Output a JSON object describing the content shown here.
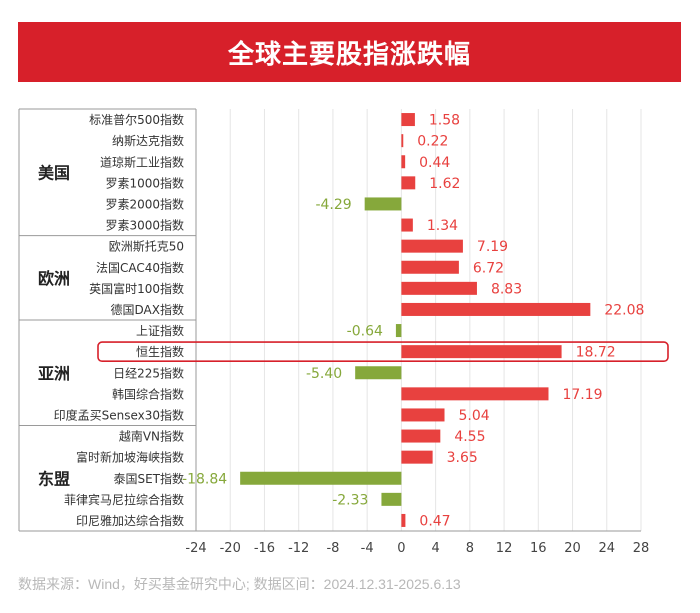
{
  "header": {
    "title": "全球主要股指涨跌幅"
  },
  "footer": {
    "source": "数据来源：Wind，好买基金研究中心; 数据区间：2024.12.31-2025.6.13"
  },
  "colors": {
    "positive": "#e8413f",
    "negative": "#86a83b",
    "banner": "#d7202a",
    "highlight": "#d7202a"
  },
  "chart_data": {
    "type": "bar",
    "orientation": "horizontal",
    "title": "全球主要股指涨跌幅",
    "xlim": [
      -24,
      28
    ],
    "xticks": [
      -24,
      -20,
      -16,
      -12,
      -8,
      -4,
      0,
      4,
      8,
      12,
      16,
      20,
      24,
      28
    ],
    "highlight_category": "恒生指数",
    "groups": [
      {
        "name": "美国",
        "categories": [
          "标准普尔500指数",
          "纳斯达克指数",
          "道琼斯工业指数",
          "罗素1000指数",
          "罗素2000指数",
          "罗素3000指数"
        ]
      },
      {
        "name": "欧洲",
        "categories": [
          "欧洲斯托克50",
          "法国CAC40指数",
          "英国富时100指数",
          "德国DAX指数"
        ]
      },
      {
        "name": "亚洲",
        "categories": [
          "上证指数",
          "恒生指数",
          "日经225指数",
          "韩国综合指数",
          "印度孟买Sensex30指数"
        ]
      },
      {
        "name": "东盟",
        "categories": [
          "越南VN指数",
          "富时新加坡海峡指数",
          "泰国SET指数",
          "菲律宾马尼拉综合指数",
          "印尼雅加达综合指数"
        ]
      }
    ],
    "categories": [
      "标准普尔500指数",
      "纳斯达克指数",
      "道琼斯工业指数",
      "罗素1000指数",
      "罗素2000指数",
      "罗素3000指数",
      "欧洲斯托克50",
      "法国CAC40指数",
      "英国富时100指数",
      "德国DAX指数",
      "上证指数",
      "恒生指数",
      "日经225指数",
      "韩国综合指数",
      "印度孟买Sensex30指数",
      "越南VN指数",
      "富时新加坡海峡指数",
      "泰国SET指数",
      "菲律宾马尼拉综合指数",
      "印尼雅加达综合指数"
    ],
    "values": [
      1.58,
      0.22,
      0.44,
      1.62,
      -4.29,
      1.34,
      7.19,
      6.72,
      8.83,
      22.08,
      -0.64,
      18.72,
      -5.4,
      17.19,
      5.04,
      4.55,
      3.65,
      -18.84,
      -2.33,
      0.47
    ],
    "value_labels": [
      "1.58",
      "0.22",
      "0.44",
      "1.62",
      "-4.29",
      "1.34",
      "7.19",
      "6.72",
      "8.83",
      "22.08",
      "-0.64",
      "18.72",
      "-5.40",
      "17.19",
      "5.04",
      "4.55",
      "3.65",
      "-18.84",
      "-2.33",
      "0.47"
    ]
  }
}
